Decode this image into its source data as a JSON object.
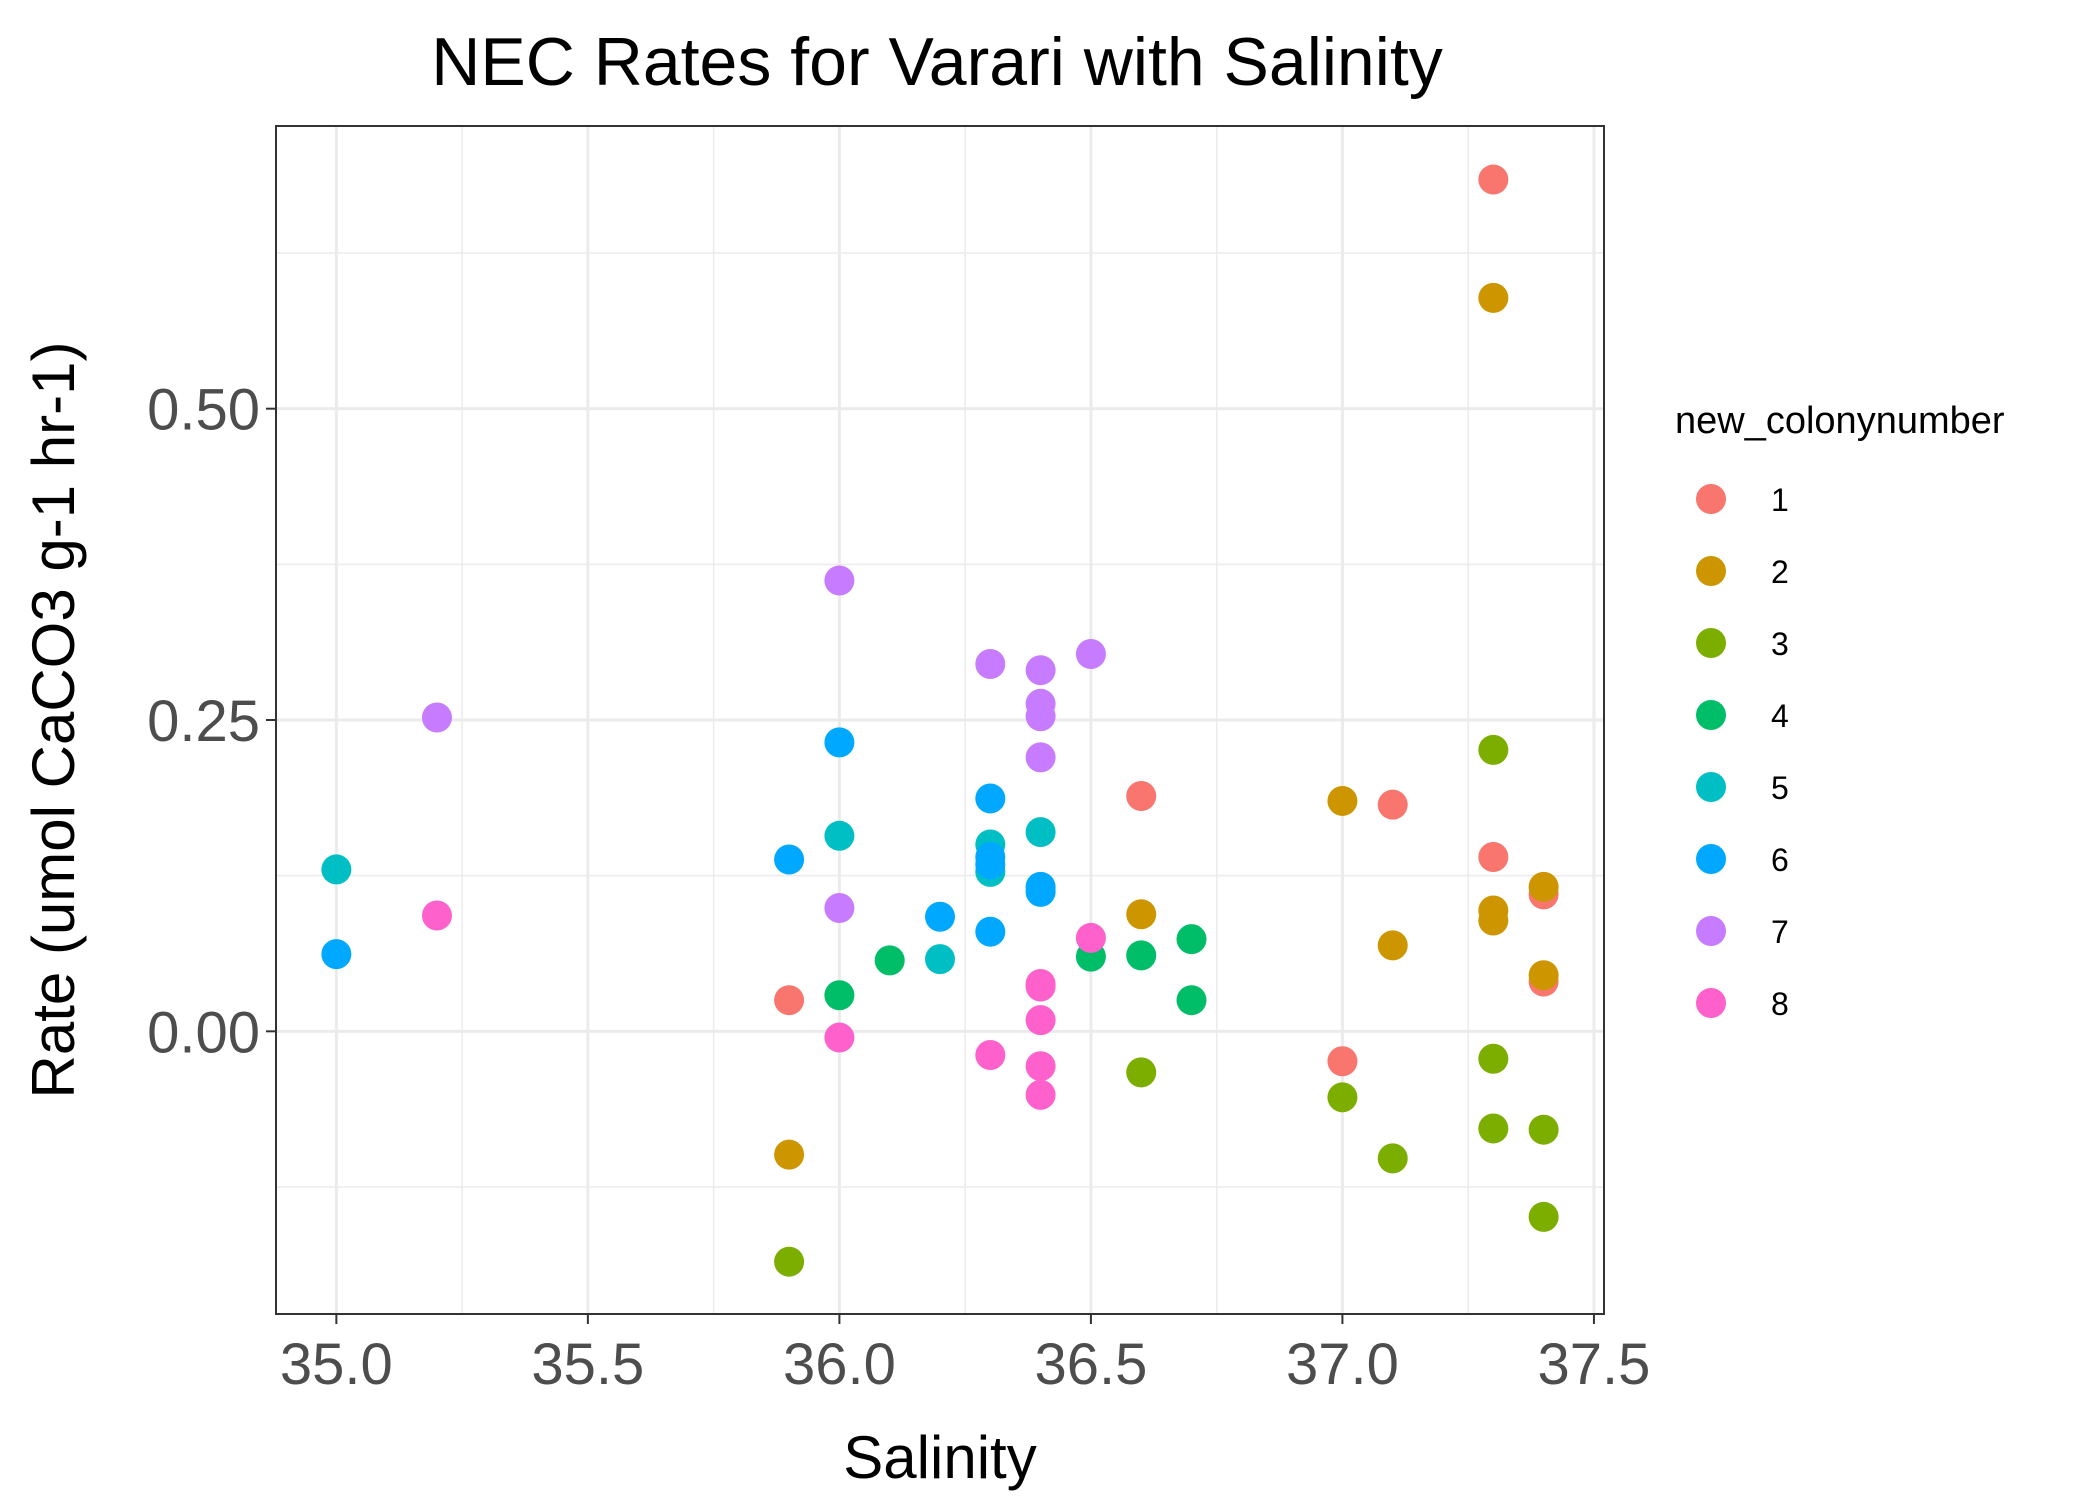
{
  "chart_data": {
    "type": "scatter",
    "title": "NEC Rates for Varari with Salinity",
    "xlabel": "Salinity",
    "ylabel": "Rate (umol CaCO3 g-1 hr-1)",
    "xlim": [
      34.88,
      37.52
    ],
    "ylim": [
      -0.227,
      0.727
    ],
    "x_ticks": [
      {
        "value": 35.0,
        "label": "35.0"
      },
      {
        "value": 35.5,
        "label": "35.5"
      },
      {
        "value": 36.0,
        "label": "36.0"
      },
      {
        "value": 36.5,
        "label": "36.5"
      },
      {
        "value": 37.0,
        "label": "37.0"
      },
      {
        "value": 37.5,
        "label": "37.5"
      }
    ],
    "y_ticks": [
      {
        "value": 0.0,
        "label": "0.00"
      },
      {
        "value": 0.25,
        "label": "0.25"
      },
      {
        "value": 0.5,
        "label": "0.50"
      }
    ],
    "x_minor_grid": [
      35.25,
      35.75,
      36.25,
      36.75,
      37.25
    ],
    "y_minor_grid": [
      -0.125,
      0.125,
      0.375,
      0.625
    ],
    "grid": true,
    "legend": {
      "title": "new_colonynumber",
      "position": "right"
    },
    "series": [
      {
        "name": "1",
        "color": "#F8766D",
        "points": [
          [
            35.9,
            0.025
          ],
          [
            36.6,
            0.189
          ],
          [
            37.0,
            -0.024
          ],
          [
            37.1,
            0.182
          ],
          [
            37.3,
            0.684
          ],
          [
            37.3,
            0.14
          ],
          [
            37.4,
            0.11
          ],
          [
            37.4,
            0.04
          ]
        ]
      },
      {
        "name": "2",
        "color": "#CD9600",
        "points": [
          [
            35.9,
            -0.099
          ],
          [
            36.6,
            0.094
          ],
          [
            37.0,
            0.185
          ],
          [
            37.1,
            0.069
          ],
          [
            37.3,
            0.589
          ],
          [
            37.3,
            0.097
          ],
          [
            37.3,
            0.089
          ],
          [
            37.4,
            0.116
          ],
          [
            37.4,
            0.045
          ]
        ]
      },
      {
        "name": "3",
        "color": "#7CAE00",
        "points": [
          [
            35.9,
            -0.185
          ],
          [
            36.6,
            -0.033
          ],
          [
            37.0,
            -0.053
          ],
          [
            37.1,
            -0.102
          ],
          [
            37.3,
            0.226
          ],
          [
            37.3,
            -0.022
          ],
          [
            37.3,
            -0.078
          ],
          [
            37.4,
            -0.079
          ],
          [
            37.4,
            -0.149
          ]
        ]
      },
      {
        "name": "4",
        "color": "#00BE67",
        "points": [
          [
            36.0,
            0.029
          ],
          [
            36.1,
            0.057
          ],
          [
            36.5,
            0.06
          ],
          [
            36.6,
            0.061
          ],
          [
            36.7,
            0.074
          ],
          [
            36.7,
            0.025
          ]
        ]
      },
      {
        "name": "5",
        "color": "#00BFC4",
        "points": [
          [
            35.0,
            0.13
          ],
          [
            36.0,
            0.157
          ],
          [
            36.2,
            0.058
          ],
          [
            36.3,
            0.15
          ],
          [
            36.3,
            0.128
          ],
          [
            36.4,
            0.16
          ]
        ]
      },
      {
        "name": "6",
        "color": "#00A9FF",
        "points": [
          [
            35.0,
            0.062
          ],
          [
            35.9,
            0.138
          ],
          [
            36.0,
            0.232
          ],
          [
            36.2,
            0.092
          ],
          [
            36.3,
            0.187
          ],
          [
            36.3,
            0.14
          ],
          [
            36.3,
            0.134
          ],
          [
            36.3,
            0.08
          ],
          [
            36.4,
            0.116
          ],
          [
            36.4,
            0.112
          ]
        ]
      },
      {
        "name": "7",
        "color": "#C77CFF",
        "points": [
          [
            35.2,
            0.252
          ],
          [
            36.0,
            0.362
          ],
          [
            36.0,
            0.099
          ],
          [
            36.3,
            0.295
          ],
          [
            36.4,
            0.29
          ],
          [
            36.4,
            0.263
          ],
          [
            36.4,
            0.253
          ],
          [
            36.4,
            0.22
          ],
          [
            36.5,
            0.303
          ]
        ]
      },
      {
        "name": "8",
        "color": "#FF61CC",
        "points": [
          [
            35.2,
            0.093
          ],
          [
            36.0,
            -0.005
          ],
          [
            36.3,
            -0.019
          ],
          [
            36.4,
            0.038
          ],
          [
            36.4,
            0.036
          ],
          [
            36.4,
            0.009
          ],
          [
            36.4,
            -0.028
          ],
          [
            36.4,
            -0.051
          ],
          [
            36.5,
            0.075
          ]
        ]
      }
    ]
  }
}
